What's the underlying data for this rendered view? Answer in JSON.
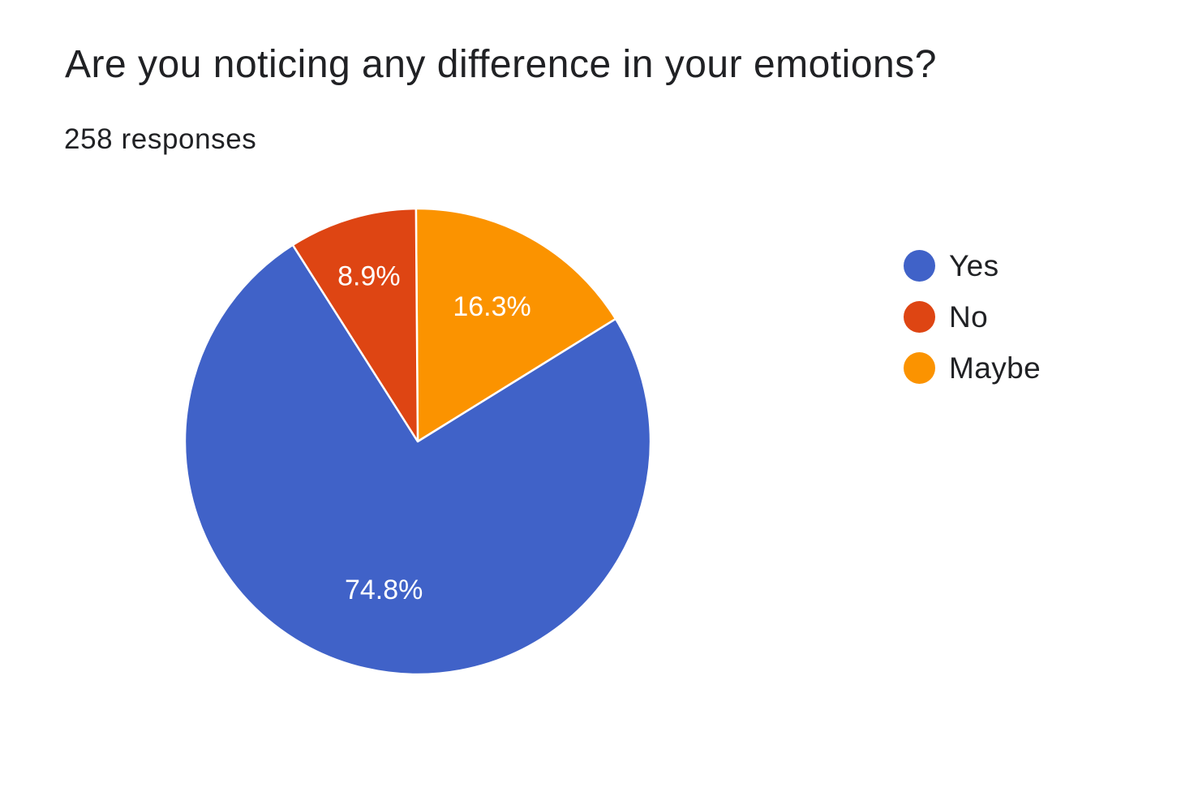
{
  "chart_data": {
    "type": "pie",
    "title": "Are you noticing any difference in your emotions?",
    "subtitle": "258 responses",
    "legend_position": "right",
    "slices": [
      {
        "name": "Yes",
        "value": 74.8,
        "label": "74.8%",
        "color": "#4062c8"
      },
      {
        "name": "No",
        "value": 8.9,
        "label": "8.9%",
        "color": "#de4513"
      },
      {
        "name": "Maybe",
        "value": 16.3,
        "label": "16.3%",
        "color": "#fb9300"
      }
    ]
  }
}
